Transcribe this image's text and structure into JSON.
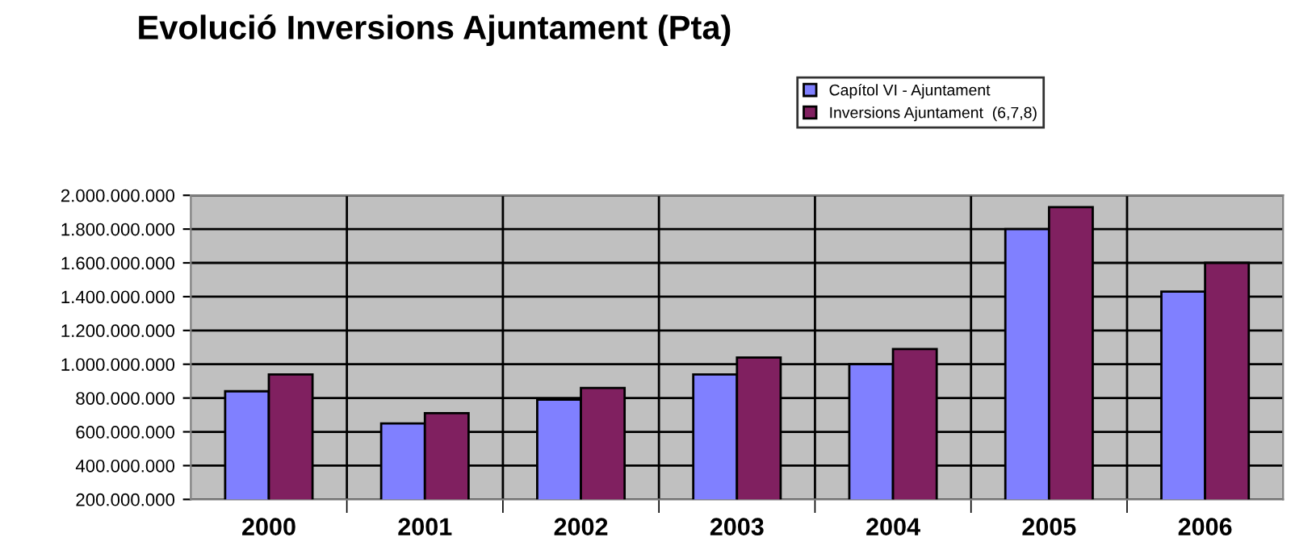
{
  "chart_data": {
    "type": "bar",
    "title": "Evolució Inversions Ajuntament (Pta)",
    "categories": [
      "2000",
      "2001",
      "2002",
      "2003",
      "2004",
      "2005",
      "2006"
    ],
    "series": [
      {
        "name": "Capítol VI - Ajuntament",
        "color": "#8080ff",
        "values": [
          840000000,
          650000000,
          790000000,
          940000000,
          1000000000,
          1800000000,
          1430000000
        ]
      },
      {
        "name": "Inversions Ajuntament  (6,7,8)",
        "color": "#802060",
        "values": [
          940000000,
          710000000,
          860000000,
          1040000000,
          1090000000,
          1930000000,
          1600000000
        ]
      }
    ],
    "ylim": [
      200000000,
      2000000000
    ],
    "yticks": [
      {
        "value": 200000000,
        "label": "200.000.000"
      },
      {
        "value": 400000000,
        "label": "400.000.000"
      },
      {
        "value": 600000000,
        "label": "600.000.000"
      },
      {
        "value": 800000000,
        "label": "800.000.000"
      },
      {
        "value": 1000000000,
        "label": "1.000.000.000"
      },
      {
        "value": 1200000000,
        "label": "1.200.000.000"
      },
      {
        "value": 1400000000,
        "label": "1.400.000.000"
      },
      {
        "value": 1600000000,
        "label": "1.600.000.000"
      },
      {
        "value": 1800000000,
        "label": "1.800.000.000"
      },
      {
        "value": 2000000000,
        "label": "2.000.000.000"
      }
    ],
    "grid": true,
    "legend": "top right"
  }
}
